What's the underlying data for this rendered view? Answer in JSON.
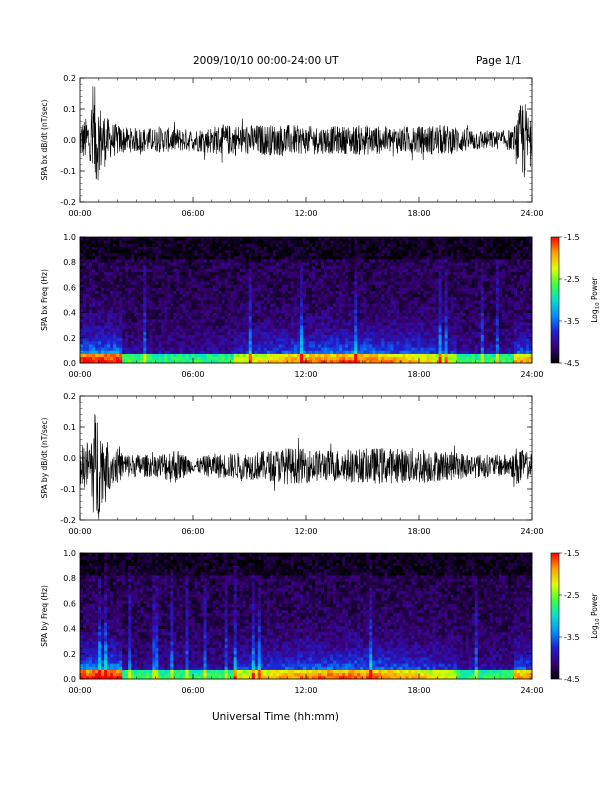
{
  "header": {
    "title": "2009/10/10   00:00-24:00 UT",
    "page": "Page 1/1"
  },
  "xaxis_title": "Universal Time (hh:mm)",
  "colors": {
    "trace": "#000000",
    "spectrogram_scale": [
      "#000000",
      "#3a007a",
      "#2020d0",
      "#0090ff",
      "#00e0d0",
      "#40ff40",
      "#e0ff00",
      "#ffa000",
      "#ff0000"
    ]
  },
  "chart_data": [
    {
      "type": "line",
      "title": "",
      "ylabel": "SPA bx dB/dt (nT/sec)",
      "xlabel": "",
      "x_ticks": [
        "00:00",
        "06:00",
        "12:00",
        "18:00",
        "24:00"
      ],
      "y_ticks": [
        "0.2",
        "0.1",
        "0.0",
        "-0.1",
        "-0.2"
      ],
      "xlim": [
        0,
        24
      ],
      "ylim": [
        -0.2,
        0.2
      ],
      "series": [
        {
          "x": [
            0,
            0.5,
            0.7,
            0.9,
            1.2,
            1.6,
            2.5,
            4,
            5,
            6,
            7,
            7.5,
            9,
            10,
            11,
            12,
            13,
            14,
            15,
            16,
            17,
            18,
            19,
            20,
            21,
            22,
            23,
            23.3,
            23.5,
            24
          ],
          "y": [
            0.0,
            0.05,
            0.2,
            -0.14,
            0.09,
            -0.06,
            0.04,
            0.03,
            -0.04,
            0.02,
            -0.05,
            0.05,
            0.05,
            0.05,
            0.05,
            0.05,
            0.05,
            0.05,
            0.05,
            0.04,
            0.04,
            0.04,
            0.05,
            0.04,
            0.03,
            0.03,
            0.03,
            0.09,
            0.15,
            0.02
          ],
          "envelope": [
            0.06,
            0.08,
            0.2,
            0.14,
            0.1,
            0.06,
            0.04,
            0.04,
            0.04,
            0.035,
            0.045,
            0.05,
            0.05,
            0.05,
            0.05,
            0.045,
            0.045,
            0.045,
            0.05,
            0.045,
            0.045,
            0.045,
            0.05,
            0.045,
            0.035,
            0.03,
            0.035,
            0.09,
            0.15,
            0.05
          ]
        }
      ],
      "grid": false
    },
    {
      "type": "heatmap",
      "title": "",
      "ylabel": "SPA bx Freq (Hz)",
      "xlabel": "",
      "x_ticks": [
        "00:00",
        "06:00",
        "12:00",
        "18:00",
        "24:00"
      ],
      "y_ticks": [
        "1.0",
        "0.8",
        "0.6",
        "0.4",
        "0.2",
        "0.0"
      ],
      "xlim": [
        0,
        24
      ],
      "ylim": [
        0,
        1.0
      ],
      "colorbar": {
        "label": "Log10 Power",
        "label_base": "Log",
        "label_sub": "10",
        "label_rest": " Power",
        "ticks": [
          "-1.5",
          "-2.5",
          "-3.5",
          "-4.5"
        ],
        "range": [
          -4.5,
          -1.5
        ]
      },
      "grid": false
    },
    {
      "type": "line",
      "title": "",
      "ylabel": "SPA by dB/dt (nT/sec)",
      "xlabel": "",
      "x_ticks": [
        "00:00",
        "06:00",
        "12:00",
        "18:00",
        "24:00"
      ],
      "y_ticks": [
        "0.2",
        "0.1",
        "0.0",
        "-0.1",
        "-0.2"
      ],
      "xlim": [
        0,
        24
      ],
      "ylim": [
        -0.2,
        0.2
      ],
      "series": [
        {
          "x": [
            0,
            0.5,
            0.7,
            0.9,
            1.2,
            1.6,
            2.5,
            4,
            5,
            6,
            7,
            7.5,
            9,
            10,
            11,
            12,
            13,
            14,
            15,
            16,
            17,
            18,
            19,
            20,
            21,
            22,
            23,
            23.3,
            23.5,
            24
          ],
          "y": [
            -0.03,
            0.08,
            0.16,
            -0.2,
            0.11,
            -0.08,
            0.04,
            0.03,
            -0.1,
            0.0,
            -0.05,
            0.03,
            0.04,
            0.05,
            0.06,
            0.06,
            0.05,
            0.06,
            0.05,
            0.06,
            0.05,
            0.06,
            0.05,
            0.04,
            0.04,
            0.03,
            0.04,
            0.08,
            0.02,
            0.02
          ],
          "envelope": [
            0.06,
            0.09,
            0.16,
            0.2,
            0.11,
            0.07,
            0.04,
            0.035,
            0.06,
            0.02,
            0.04,
            0.04,
            0.045,
            0.05,
            0.06,
            0.055,
            0.05,
            0.055,
            0.055,
            0.06,
            0.055,
            0.06,
            0.05,
            0.045,
            0.04,
            0.035,
            0.04,
            0.08,
            0.05,
            0.04
          ]
        }
      ],
      "grid": false
    },
    {
      "type": "heatmap",
      "title": "",
      "ylabel": "SPA by Freq (Hz)",
      "xlabel": "",
      "x_ticks": [
        "00:00",
        "06:00",
        "12:00",
        "18:00",
        "24:00"
      ],
      "y_ticks": [
        "1.0",
        "0.8",
        "0.6",
        "0.4",
        "0.2",
        "0.0"
      ],
      "xlim": [
        0,
        24
      ],
      "ylim": [
        0,
        1.0
      ],
      "colorbar": {
        "label": "Log10 Power",
        "label_base": "Log",
        "label_sub": "10",
        "label_rest": " Power",
        "ticks": [
          "-1.5",
          "-2.5",
          "-3.5",
          "-4.5"
        ],
        "range": [
          -4.5,
          -1.5
        ]
      },
      "grid": false
    }
  ]
}
